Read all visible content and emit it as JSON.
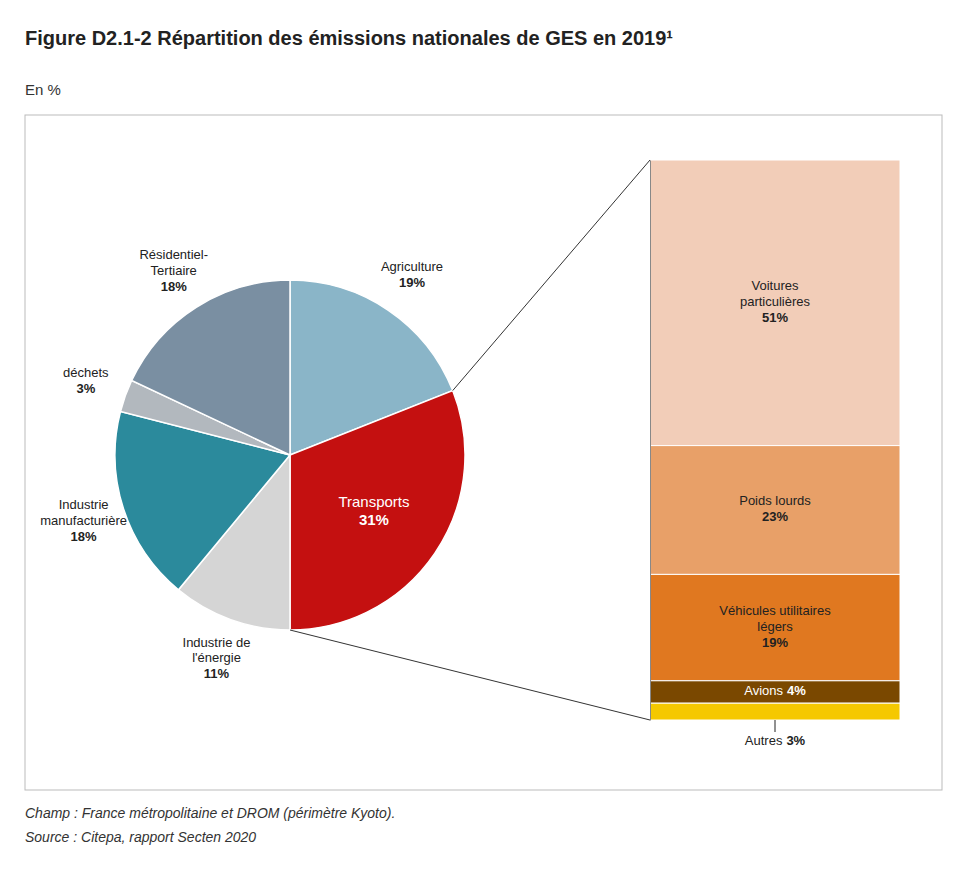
{
  "chart_data": [
    {
      "type": "pie",
      "title": "Figure D2.1-2 Répartition des émissions nationales de GES en 2019¹",
      "subtitle": "En %",
      "annotations": [
        "Champ : France métropolitaine et DROM (périmètre Kyoto).",
        "Source : Citepa, rapport Secten 2020"
      ],
      "categories": [
        "Agriculture",
        "Transports",
        "Industrie de\nl'énergie",
        "Industrie\nmanufacturière",
        "déchets",
        "Résidentiel-\nTertiaire"
      ],
      "values": [
        19,
        31,
        11,
        18,
        3,
        18
      ],
      "value_labels": [
        "19%",
        "31%",
        "11%",
        "18%",
        "3%",
        "18%"
      ],
      "colors": [
        "#8ab5c8",
        "#c41010",
        "#d5d5d5",
        "#2b8a9c",
        "#b2b8be",
        "#7a8fa2"
      ],
      "data_labels": true
    },
    {
      "type": "bar",
      "stacked": true,
      "categories": [
        "Voitures\nparticulières",
        "Poids lourds",
        "Véhicules utilitaires\nlégers",
        "Avions",
        "Autres"
      ],
      "values": [
        51,
        23,
        19,
        4,
        3
      ],
      "value_labels": [
        "51%",
        "23%",
        "19%",
        "4%",
        "3%"
      ],
      "colors": [
        "#f2cdb8",
        "#e8a068",
        "#e07820",
        "#7a4800",
        "#f5c800"
      ],
      "ylim": [
        0,
        100
      ],
      "tick_labels": false,
      "data_labels": true
    }
  ]
}
